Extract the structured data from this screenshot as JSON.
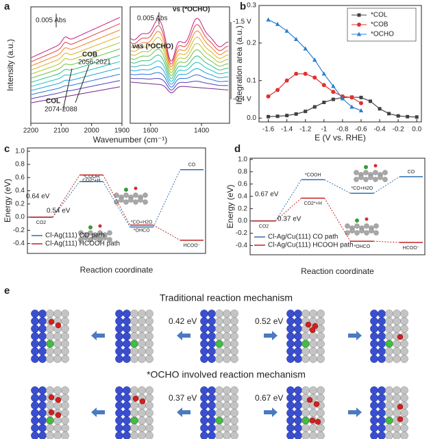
{
  "panel_labels": [
    "a",
    "b",
    "c",
    "d",
    "e"
  ],
  "mechanisms": [
    {
      "title": "Traditional reaction mechanism",
      "barriers": [
        "0.42 eV",
        "0.52 eV"
      ]
    },
    {
      "title": "*OCHO involved reaction mechanism",
      "barriers": [
        "0.37 eV",
        "0.67 eV"
      ]
    }
  ],
  "chart_data": [
    {
      "type": "spectra",
      "x_label": "Wavenumber (cm⁻¹)",
      "y_label": "Intensity (a.u.)",
      "xlim": [
        2200,
        1900
      ],
      "xticks": [
        2200,
        2100,
        2000,
        1900
      ],
      "xlim_right": [
        1680,
        1290
      ],
      "xticks_right": [
        1600,
        1400
      ],
      "annotations": [
        "0.005 Abs",
        "0.005 Abs",
        "COL",
        "2074-2088",
        "COB",
        "2056-2021",
        "νas (*OCHO)",
        "νs (*OCHO)",
        "-1.5 V",
        "-0.4 V"
      ]
    },
    {
      "type": "line",
      "x_label": "E (V vs. RHE)",
      "y_label": "Integration area (a.u.)",
      "x": [
        -1.6,
        -1.5,
        -1.4,
        -1.3,
        -1.2,
        -1.1,
        -1.0,
        -0.9,
        -0.8,
        -0.7,
        -0.6,
        -0.5,
        -0.4,
        -0.3,
        -0.2,
        -0.1,
        0.0
      ],
      "xlim": [
        -1.7,
        0.05
      ],
      "xticks": [
        -1.6,
        -1.4,
        -1.2,
        -1.0,
        -0.8,
        -0.6,
        -0.4,
        -0.2,
        {
          "value": 0,
          "label": "0.0"
        }
      ],
      "ylim": [
        -0.01,
        0.3
      ],
      "yticks": [
        {
          "value": 0,
          "label": "0.0"
        },
        0.1,
        0.2,
        0.3
      ],
      "legend": "top-right",
      "series": [
        {
          "name": "*COL",
          "color": "#404040",
          "marker": "square",
          "values": [
            0.004,
            0.005,
            0.007,
            0.011,
            0.018,
            0.03,
            0.042,
            0.05,
            0.055,
            0.056,
            0.055,
            0.045,
            0.025,
            0.012,
            0.006,
            0.004,
            0.003
          ]
        },
        {
          "name": "*COB",
          "color": "#e03030",
          "marker": "circle",
          "values": [
            0.058,
            0.075,
            0.1,
            0.118,
            0.118,
            0.108,
            0.088,
            0.07,
            0.058,
            0.055,
            0.04,
            null,
            null,
            null,
            null,
            null,
            null
          ]
        },
        {
          "name": "*OCHO",
          "color": "#2a7fd0",
          "marker": "triangle",
          "values": [
            0.262,
            0.25,
            0.232,
            0.21,
            0.185,
            0.155,
            0.118,
            0.085,
            0.052,
            0.03,
            0.02,
            null,
            null,
            null,
            null,
            null,
            null
          ]
        }
      ]
    },
    {
      "type": "energy",
      "x_label": "Reaction coordinate",
      "y_label": "Energy (eV)",
      "ylim": [
        -0.55,
        1.05
      ],
      "yticks": [
        -0.4,
        -0.2,
        {
          "value": 0,
          "label": "0.0"
        },
        0.2,
        0.4,
        0.6,
        0.8,
        {
          "value": 1,
          "label": "1.0"
        }
      ],
      "series": [
        {
          "name": "Cl-Ag(111) CO path",
          "color": "#2a6fb0",
          "values": [
            0,
            0.54,
            -0.15,
            0.72
          ],
          "point_labels": [
            "CO2",
            "*COOH",
            "*CO+H2O",
            "CO"
          ]
        },
        {
          "name": "Cl-Ag(111) HCOOH path",
          "color": "#c02020",
          "values": [
            0,
            0.64,
            -0.12,
            -0.35
          ],
          "point_labels": [
            "CO2",
            "CO2*+H",
            "*OHCO",
            "HCOO⁻"
          ]
        }
      ],
      "annotations": [
        "0.64 eV",
        "0.54 eV"
      ]
    },
    {
      "type": "energy",
      "x_label": "Reaction coordinate",
      "y_label": "Energy (eV)",
      "ylim": [
        -0.55,
        1.02
      ],
      "yticks": [
        -0.4,
        -0.2,
        {
          "value": 0,
          "label": "0.0"
        },
        0.2,
        0.4,
        0.6,
        0.8,
        {
          "value": 1,
          "label": "1.0"
        }
      ],
      "series": [
        {
          "name": "Cl-Ag/Cu(111) CO path",
          "color": "#2a6fb0",
          "values": [
            0,
            0.67,
            0.45,
            0.72
          ],
          "point_labels": [
            "CO2",
            "*COOH",
            "*CO+H2O",
            "CO"
          ]
        },
        {
          "name": "Cl-Ag/Cu(111) HCOOH path",
          "color": "#c02020",
          "values": [
            0,
            0.37,
            -0.33,
            -0.35
          ],
          "point_labels": [
            "CO2",
            "CO2*+H",
            "*OHCO",
            "HCOO⁻"
          ]
        }
      ],
      "annotations": [
        "0.67 eV",
        "0.37 eV"
      ]
    }
  ]
}
